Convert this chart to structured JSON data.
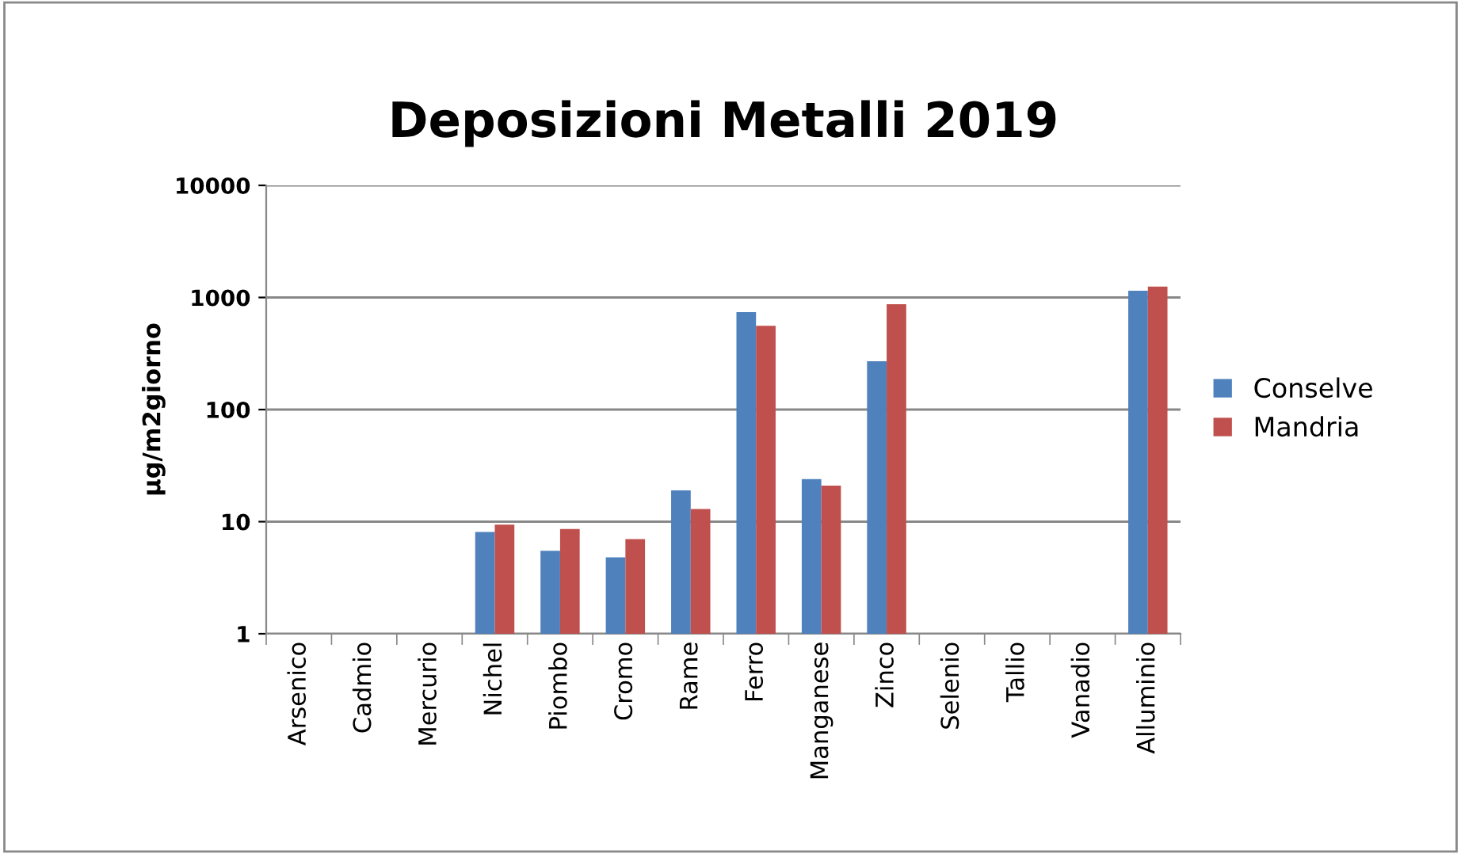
{
  "chart_data": {
    "type": "bar",
    "title": "Deposizioni Metalli 2019",
    "ylabel": "µg/m2giorno",
    "categories": [
      "Arsenico",
      "Cadmio",
      "Mercurio",
      "Nichel",
      "Piombo",
      "Cromo",
      "Rame",
      "Ferro",
      "Manganese",
      "Zinco",
      "Selenio",
      "Tallio",
      "Vanadio",
      "Alluminio"
    ],
    "series": [
      {
        "name": "Conselve",
        "color": "#4f81bd",
        "values": [
          null,
          null,
          null,
          8.1,
          5.5,
          4.8,
          19,
          740,
          24,
          270,
          null,
          null,
          null,
          1150
        ]
      },
      {
        "name": "Mandria",
        "color": "#c0504d",
        "values": [
          null,
          null,
          null,
          9.4,
          8.6,
          7.0,
          13,
          560,
          21,
          870,
          null,
          null,
          null,
          1250
        ]
      }
    ],
    "log": true,
    "ylim": [
      1,
      10000
    ],
    "yticks": [
      1,
      10,
      100,
      1000,
      10000
    ],
    "grid": "y",
    "legend": "right"
  }
}
